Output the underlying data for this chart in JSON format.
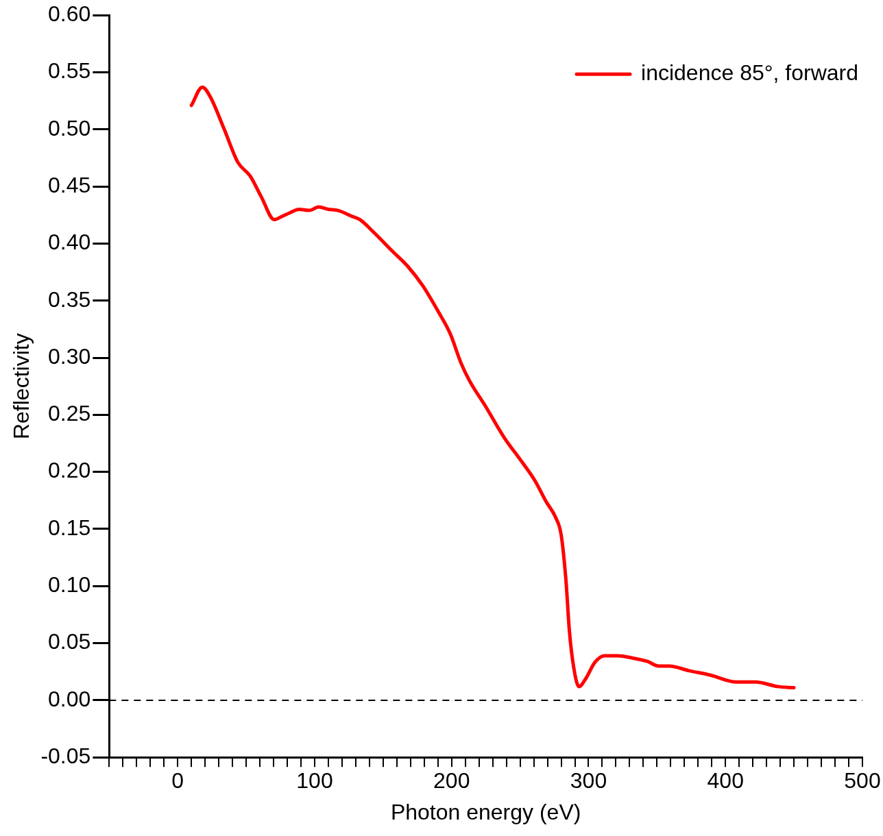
{
  "chart_data": {
    "type": "line",
    "xlabel": "Photon energy (eV)",
    "ylabel": "Reflectivity",
    "xlim": [
      -50,
      500
    ],
    "ylim": [
      -0.05,
      0.6
    ],
    "xticks": [
      {
        "value": -50,
        "label": null
      },
      {
        "value": -40,
        "label": null
      },
      {
        "value": -30,
        "label": null
      },
      {
        "value": -20,
        "label": null
      },
      {
        "value": -10,
        "label": null
      },
      0,
      {
        "value": 10,
        "label": null
      },
      {
        "value": 20,
        "label": null
      },
      {
        "value": 30,
        "label": null
      },
      {
        "value": 40,
        "label": null
      },
      {
        "value": 50,
        "label": null
      },
      {
        "value": 60,
        "label": null
      },
      {
        "value": 70,
        "label": null
      },
      {
        "value": 80,
        "label": null
      },
      {
        "value": 90,
        "label": null
      },
      100,
      {
        "value": 110,
        "label": null
      },
      {
        "value": 120,
        "label": null
      },
      {
        "value": 130,
        "label": null
      },
      {
        "value": 140,
        "label": null
      },
      {
        "value": 150,
        "label": null
      },
      {
        "value": 160,
        "label": null
      },
      {
        "value": 170,
        "label": null
      },
      {
        "value": 180,
        "label": null
      },
      {
        "value": 190,
        "label": null
      },
      200,
      {
        "value": 210,
        "label": null
      },
      {
        "value": 220,
        "label": null
      },
      {
        "value": 230,
        "label": null
      },
      {
        "value": 240,
        "label": null
      },
      {
        "value": 250,
        "label": null
      },
      {
        "value": 260,
        "label": null
      },
      {
        "value": 270,
        "label": null
      },
      {
        "value": 280,
        "label": null
      },
      {
        "value": 290,
        "label": null
      },
      300,
      {
        "value": 310,
        "label": null
      },
      {
        "value": 320,
        "label": null
      },
      {
        "value": 330,
        "label": null
      },
      {
        "value": 340,
        "label": null
      },
      {
        "value": 350,
        "label": null
      },
      {
        "value": 360,
        "label": null
      },
      {
        "value": 370,
        "label": null
      },
      {
        "value": 380,
        "label": null
      },
      {
        "value": 390,
        "label": null
      },
      400,
      {
        "value": 410,
        "label": null
      },
      {
        "value": 420,
        "label": null
      },
      {
        "value": 430,
        "label": null
      },
      {
        "value": 440,
        "label": null
      },
      {
        "value": 450,
        "label": null
      },
      {
        "value": 460,
        "label": null
      },
      {
        "value": 470,
        "label": null
      },
      {
        "value": 480,
        "label": null
      },
      {
        "value": 490,
        "label": null
      },
      500
    ],
    "yticks": [
      {
        "value": -0.05,
        "label": "-0.05"
      },
      {
        "value": 0,
        "label": "0.00"
      },
      {
        "value": 0.05,
        "label": "0.05"
      },
      {
        "value": 0.1,
        "label": "0.10"
      },
      {
        "value": 0.15,
        "label": "0.15"
      },
      {
        "value": 0.2,
        "label": "0.20"
      },
      {
        "value": 0.25,
        "label": "0.25"
      },
      {
        "value": 0.3,
        "label": "0.30"
      },
      {
        "value": 0.35,
        "label": "0.35"
      },
      {
        "value": 0.4,
        "label": "0.40"
      },
      {
        "value": 0.45,
        "label": "0.45"
      },
      {
        "value": 0.5,
        "label": "0.50"
      },
      {
        "value": 0.55,
        "label": "0.55"
      },
      {
        "value": 0.6,
        "label": "0.60"
      }
    ],
    "legend": "top right",
    "marker": "none",
    "line_style": "solid",
    "ref_lines": [
      {
        "axis": "y",
        "value": 0,
        "color": "#000000",
        "line_style": "dashed"
      }
    ],
    "series": [
      {
        "name": "incidence 85°, forward",
        "color": "#ff0000",
        "x": [
          10,
          18,
          24,
          34,
          44,
          53,
          61,
          70.5,
          76.5,
          82,
          88.6,
          96,
          103,
          110,
          117,
          127,
          133,
          143,
          157,
          168,
          179,
          190,
          199,
          207,
          213,
          225,
          239,
          250,
          261,
          269,
          276,
          280,
          283.5,
          286,
          289,
          293,
          298,
          304.5,
          311.6,
          321,
          332,
          343,
          351,
          359,
          373,
          389,
          408,
          422,
          438,
          450
        ],
        "values": [
          0.521,
          0.537,
          0.528,
          0.5,
          0.471,
          0.459,
          0.441,
          0.421,
          0.424,
          0.427,
          0.43,
          0.429,
          0.432,
          0.43,
          0.429,
          0.424,
          0.421,
          0.41,
          0.393,
          0.38,
          0.363,
          0.341,
          0.321,
          0.295,
          0.28,
          0.257,
          0.229,
          0.211,
          0.192,
          0.174,
          0.16,
          0.145,
          0.105,
          0.061,
          0.03,
          0.012,
          0.019,
          0.033,
          0.039,
          0.039,
          0.037,
          0.034,
          0.03,
          0.03,
          0.026,
          0.022,
          0.016,
          0.016,
          0.012,
          0.011
        ]
      }
    ]
  }
}
